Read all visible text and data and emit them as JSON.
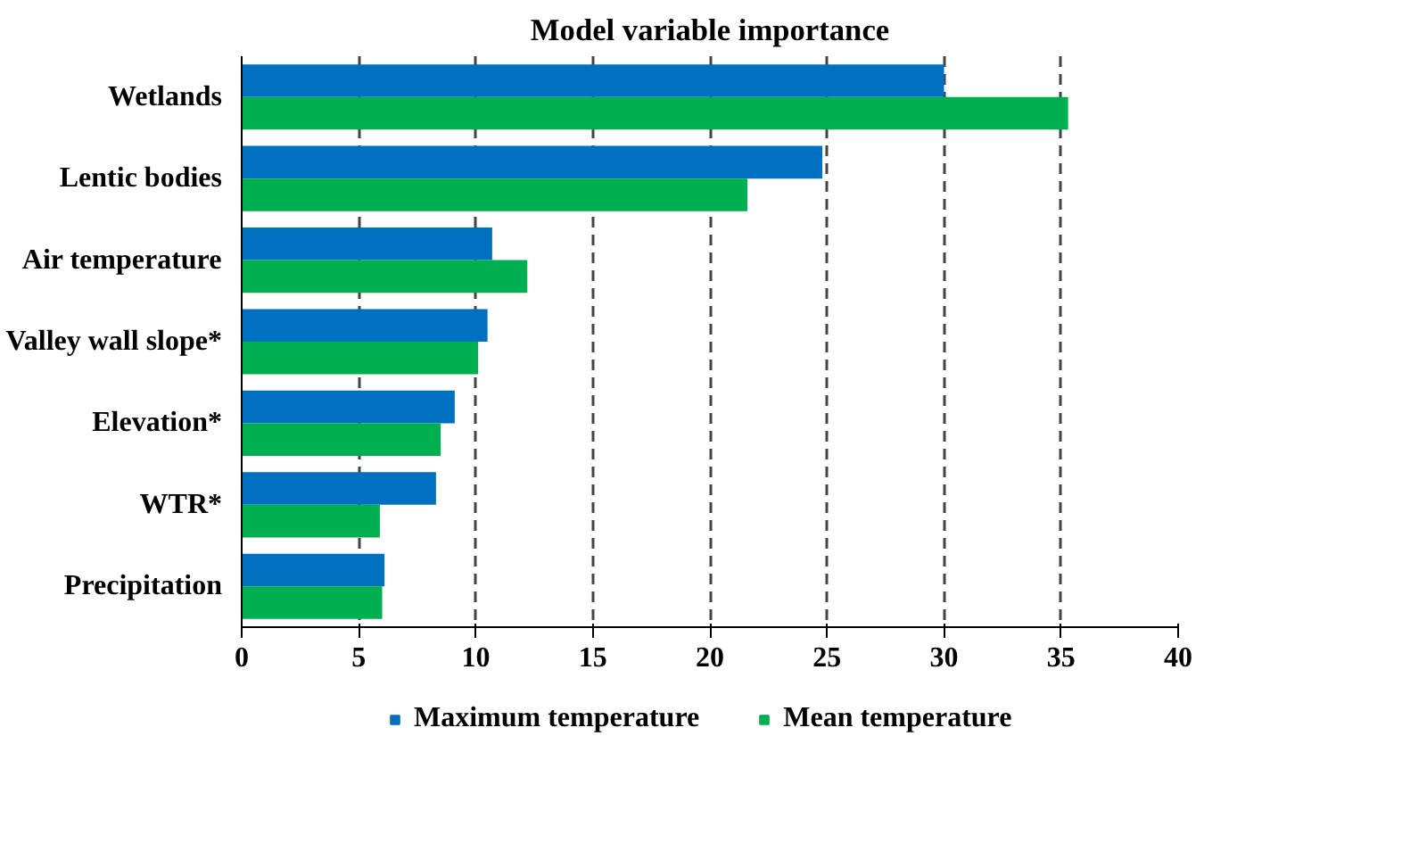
{
  "chart_data": {
    "type": "bar",
    "orientation": "horizontal",
    "title": "Model variable importance",
    "categories": [
      "Wetlands",
      "Lentic bodies",
      "Air temperature",
      "Valley wall slope*",
      "Elevation*",
      "WTR*",
      "Precipitation"
    ],
    "series": [
      {
        "name": "Maximum temperature",
        "color": "#0070c0",
        "values": [
          30.0,
          24.8,
          10.7,
          10.5,
          9.1,
          8.3,
          6.1
        ]
      },
      {
        "name": "Mean temperature",
        "color": "#00b050",
        "values": [
          35.3,
          21.6,
          12.2,
          10.1,
          8.5,
          5.9,
          6.0
        ]
      }
    ],
    "xlim": [
      0,
      40
    ],
    "xticks": [
      0,
      5,
      10,
      15,
      20,
      25,
      30,
      35,
      40
    ],
    "grid": "x",
    "legend": "bottom"
  }
}
